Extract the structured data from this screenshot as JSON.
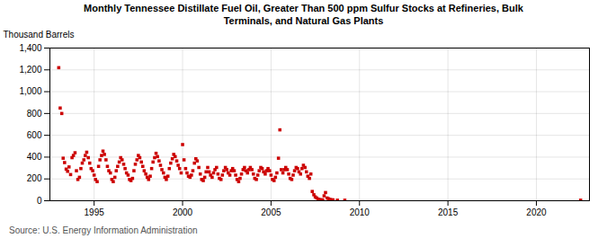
{
  "chart_data": {
    "type": "scatter",
    "title": "Monthly Tennessee Distillate Fuel Oil, Greater Than 500 ppm Sulfur Stocks at Refineries, Bulk\nTerminals, and Natural Gas Plants",
    "ylabel": "Thousand Barrels",
    "caption": "Source: U.S. Energy Information Administration",
    "color": "#cc0000",
    "marker": "square",
    "grid": true,
    "xlim": [
      1992.5,
      2023
    ],
    "xticks": [
      1995,
      2000,
      2005,
      2010,
      2015,
      2020
    ],
    "ylim": [
      0,
      1400
    ],
    "yticks": [
      0,
      200,
      400,
      600,
      800,
      {
        "value": 1000,
        "label": "1,000"
      },
      {
        "value": 1200,
        "label": "1,200"
      },
      {
        "value": 1400,
        "label": "1,400"
      }
    ],
    "x": [
      1993.0,
      1993.08,
      1993.17,
      1993.25,
      1993.33,
      1993.42,
      1993.5,
      1993.58,
      1993.67,
      1993.75,
      1993.83,
      1993.92,
      1994.0,
      1994.08,
      1994.17,
      1994.25,
      1994.33,
      1994.42,
      1994.5,
      1994.58,
      1994.67,
      1994.75,
      1994.83,
      1994.92,
      1995.0,
      1995.08,
      1995.17,
      1995.25,
      1995.33,
      1995.42,
      1995.5,
      1995.58,
      1995.67,
      1995.75,
      1995.83,
      1995.92,
      1996.0,
      1996.08,
      1996.17,
      1996.25,
      1996.33,
      1996.42,
      1996.5,
      1996.58,
      1996.67,
      1996.75,
      1996.83,
      1996.92,
      1997.0,
      1997.08,
      1997.17,
      1997.25,
      1997.33,
      1997.42,
      1997.5,
      1997.58,
      1997.67,
      1997.75,
      1997.83,
      1997.92,
      1998.0,
      1998.08,
      1998.17,
      1998.25,
      1998.33,
      1998.42,
      1998.5,
      1998.58,
      1998.67,
      1998.75,
      1998.83,
      1998.92,
      1999.0,
      1999.08,
      1999.17,
      1999.25,
      1999.33,
      1999.42,
      1999.5,
      1999.58,
      1999.67,
      1999.75,
      1999.83,
      1999.92,
      2000.0,
      2000.08,
      2000.17,
      2000.25,
      2000.33,
      2000.42,
      2000.5,
      2000.58,
      2000.67,
      2000.75,
      2000.83,
      2000.92,
      2001.0,
      2001.08,
      2001.17,
      2001.25,
      2001.33,
      2001.42,
      2001.5,
      2001.58,
      2001.67,
      2001.75,
      2001.83,
      2001.92,
      2002.0,
      2002.08,
      2002.17,
      2002.25,
      2002.33,
      2002.42,
      2002.5,
      2002.58,
      2002.67,
      2002.75,
      2002.83,
      2002.92,
      2003.0,
      2003.08,
      2003.17,
      2003.25,
      2003.33,
      2003.42,
      2003.5,
      2003.58,
      2003.67,
      2003.75,
      2003.83,
      2003.92,
      2004.0,
      2004.08,
      2004.17,
      2004.25,
      2004.33,
      2004.42,
      2004.5,
      2004.58,
      2004.67,
      2004.75,
      2004.83,
      2004.92,
      2005.0,
      2005.08,
      2005.17,
      2005.25,
      2005.33,
      2005.42,
      2005.5,
      2005.58,
      2005.67,
      2005.75,
      2005.83,
      2005.92,
      2006.0,
      2006.08,
      2006.17,
      2006.25,
      2006.33,
      2006.42,
      2006.5,
      2006.58,
      2006.67,
      2006.75,
      2006.83,
      2006.92,
      2007.0,
      2007.08,
      2007.17,
      2007.25,
      2007.33,
      2007.42,
      2007.5,
      2007.58,
      2007.67,
      2007.75,
      2007.83,
      2007.92,
      2008.0,
      2008.08,
      2008.17,
      2008.25,
      2008.33,
      2008.42,
      2008.5,
      2008.75,
      2009.17,
      2022.5
    ],
    "values": [
      1220,
      850,
      800,
      390,
      350,
      290,
      270,
      310,
      240,
      395,
      415,
      440,
      275,
      195,
      215,
      295,
      345,
      375,
      415,
      445,
      395,
      345,
      295,
      275,
      235,
      195,
      175,
      315,
      375,
      415,
      455,
      425,
      375,
      315,
      275,
      255,
      195,
      175,
      215,
      275,
      315,
      355,
      395,
      375,
      335,
      295,
      255,
      235,
      195,
      185,
      205,
      275,
      335,
      375,
      415,
      395,
      355,
      315,
      275,
      245,
      215,
      195,
      225,
      295,
      355,
      395,
      435,
      405,
      365,
      325,
      285,
      255,
      215,
      195,
      225,
      295,
      345,
      385,
      425,
      405,
      365,
      325,
      295,
      255,
      515,
      375,
      295,
      255,
      225,
      215,
      235,
      275,
      345,
      385,
      365,
      305,
      245,
      195,
      185,
      215,
      265,
      305,
      265,
      235,
      215,
      255,
      285,
      305,
      245,
      205,
      195,
      235,
      275,
      305,
      285,
      255,
      235,
      275,
      295,
      275,
      235,
      195,
      175,
      205,
      245,
      285,
      305,
      275,
      255,
      285,
      305,
      285,
      245,
      205,
      195,
      235,
      275,
      305,
      295,
      265,
      245,
      275,
      295,
      275,
      235,
      195,
      185,
      215,
      255,
      390,
      650,
      285,
      255,
      285,
      305,
      285,
      245,
      205,
      195,
      235,
      275,
      305,
      295,
      265,
      245,
      295,
      325,
      305,
      265,
      225,
      205,
      245,
      85,
      55,
      35,
      25,
      15,
      10,
      8,
      8,
      45,
      75,
      25,
      18,
      12,
      8,
      8,
      5,
      5,
      5
    ]
  }
}
